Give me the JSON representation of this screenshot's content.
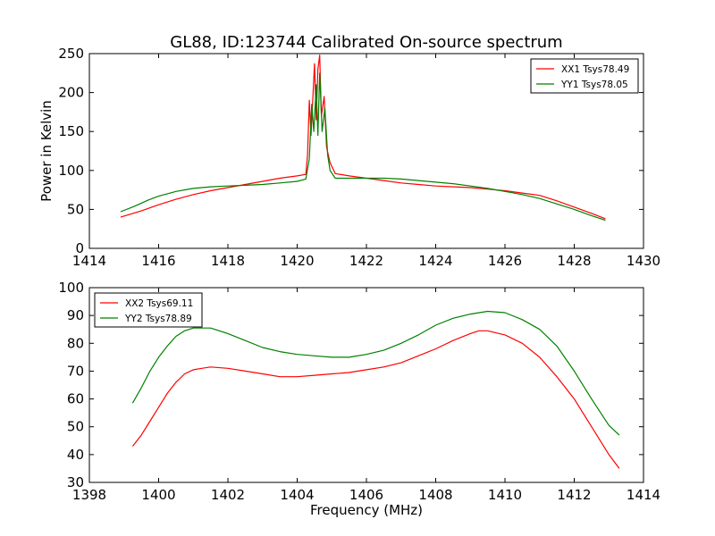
{
  "title": "GL88, ID:123744 Calibrated On-source spectrum",
  "chart_data": [
    {
      "type": "line",
      "title": "GL88, ID:123744 Calibrated On-source spectrum",
      "xlabel": "",
      "ylabel": "Power in Kelvin",
      "xlim": [
        1414,
        1430
      ],
      "ylim": [
        0,
        250
      ],
      "xticks": [
        "1414",
        "1416",
        "1418",
        "1420",
        "1422",
        "1424",
        "1426",
        "1428",
        "1430"
      ],
      "yticks": [
        "0",
        "50",
        "100",
        "150",
        "200",
        "250"
      ],
      "legend_position": "top-right",
      "grid": false,
      "series": [
        {
          "name": "XX1 Tsys78.49",
          "color": "#ff0000",
          "points": [
            [
              1414.9,
              40
            ],
            [
              1415.5,
              48
            ],
            [
              1416.0,
              56
            ],
            [
              1416.5,
              63
            ],
            [
              1417.0,
              69
            ],
            [
              1417.5,
              74
            ],
            [
              1418.0,
              78
            ],
            [
              1418.5,
              82
            ],
            [
              1419.0,
              86
            ],
            [
              1419.5,
              90
            ],
            [
              1420.0,
              93
            ],
            [
              1420.25,
              95
            ],
            [
              1420.3,
              120
            ],
            [
              1420.35,
              190
            ],
            [
              1420.4,
              145
            ],
            [
              1420.5,
              237
            ],
            [
              1420.55,
              165
            ],
            [
              1420.6,
              230
            ],
            [
              1420.65,
              248
            ],
            [
              1420.7,
              170
            ],
            [
              1420.78,
              195
            ],
            [
              1420.85,
              130
            ],
            [
              1420.95,
              110
            ],
            [
              1421.1,
              96
            ],
            [
              1421.5,
              93
            ],
            [
              1422.0,
              90
            ],
            [
              1422.5,
              87
            ],
            [
              1423.0,
              84
            ],
            [
              1423.5,
              82
            ],
            [
              1424.0,
              80
            ],
            [
              1424.5,
              79
            ],
            [
              1425.0,
              78
            ],
            [
              1425.5,
              76
            ],
            [
              1426.0,
              74
            ],
            [
              1426.5,
              71
            ],
            [
              1427.0,
              68
            ],
            [
              1427.5,
              61
            ],
            [
              1428.0,
              53
            ],
            [
              1428.5,
              45
            ],
            [
              1428.9,
              38
            ]
          ]
        },
        {
          "name": "YY1 Tsys78.05",
          "color": "#008000",
          "points": [
            [
              1414.9,
              47
            ],
            [
              1415.3,
              54
            ],
            [
              1415.7,
              62
            ],
            [
              1416.0,
              67
            ],
            [
              1416.5,
              73
            ],
            [
              1417.0,
              77
            ],
            [
              1417.5,
              79
            ],
            [
              1418.0,
              80
            ],
            [
              1418.5,
              81
            ],
            [
              1419.0,
              82
            ],
            [
              1419.5,
              84
            ],
            [
              1420.0,
              86
            ],
            [
              1420.25,
              89
            ],
            [
              1420.35,
              115
            ],
            [
              1420.42,
              185
            ],
            [
              1420.48,
              150
            ],
            [
              1420.55,
              210
            ],
            [
              1420.6,
              145
            ],
            [
              1420.65,
              225
            ],
            [
              1420.72,
              150
            ],
            [
              1420.8,
              180
            ],
            [
              1420.88,
              120
            ],
            [
              1420.95,
              100
            ],
            [
              1421.1,
              90
            ],
            [
              1421.5,
              90
            ],
            [
              1422.0,
              90
            ],
            [
              1422.5,
              90
            ],
            [
              1423.0,
              89
            ],
            [
              1423.5,
              87
            ],
            [
              1424.0,
              85
            ],
            [
              1424.5,
              83
            ],
            [
              1425.0,
              80
            ],
            [
              1425.5,
              77
            ],
            [
              1426.0,
              73
            ],
            [
              1426.5,
              69
            ],
            [
              1427.0,
              64
            ],
            [
              1427.5,
              57
            ],
            [
              1428.0,
              50
            ],
            [
              1428.5,
              42
            ],
            [
              1428.9,
              36
            ]
          ]
        }
      ]
    },
    {
      "type": "line",
      "title": "",
      "xlabel": "Frequency (MHz)",
      "ylabel": "",
      "xlim": [
        1398,
        1414
      ],
      "ylim": [
        30,
        100
      ],
      "xticks": [
        "1398",
        "1400",
        "1402",
        "1404",
        "1406",
        "1408",
        "1410",
        "1412",
        "1414"
      ],
      "yticks": [
        "30",
        "40",
        "50",
        "60",
        "70",
        "80",
        "90",
        "100"
      ],
      "legend_position": "top-left",
      "grid": false,
      "series": [
        {
          "name": "XX2 Tsys69.11",
          "color": "#ff0000",
          "points": [
            [
              1399.25,
              43
            ],
            [
              1399.5,
              47
            ],
            [
              1399.75,
              52
            ],
            [
              1400.0,
              57
            ],
            [
              1400.25,
              62
            ],
            [
              1400.5,
              66
            ],
            [
              1400.75,
              69
            ],
            [
              1401.0,
              70.5
            ],
            [
              1401.25,
              71
            ],
            [
              1401.5,
              71.5
            ],
            [
              1402.0,
              71
            ],
            [
              1402.5,
              70
            ],
            [
              1403.0,
              69
            ],
            [
              1403.5,
              68
            ],
            [
              1404.0,
              68
            ],
            [
              1404.5,
              68.5
            ],
            [
              1405.0,
              69
            ],
            [
              1405.5,
              69.5
            ],
            [
              1406.0,
              70.5
            ],
            [
              1406.5,
              71.5
            ],
            [
              1407.0,
              73
            ],
            [
              1407.5,
              75.5
            ],
            [
              1408.0,
              78
            ],
            [
              1408.5,
              81
            ],
            [
              1409.0,
              83.5
            ],
            [
              1409.25,
              84.5
            ],
            [
              1409.5,
              84.5
            ],
            [
              1410.0,
              83
            ],
            [
              1410.5,
              80
            ],
            [
              1411.0,
              75
            ],
            [
              1411.5,
              68
            ],
            [
              1412.0,
              60
            ],
            [
              1412.5,
              50
            ],
            [
              1413.0,
              40
            ],
            [
              1413.3,
              35
            ]
          ]
        },
        {
          "name": "YY2 Tsys78.89",
          "color": "#008000",
          "points": [
            [
              1399.25,
              58.5
            ],
            [
              1399.5,
              64
            ],
            [
              1399.75,
              70
            ],
            [
              1400.0,
              75
            ],
            [
              1400.25,
              79
            ],
            [
              1400.5,
              82.5
            ],
            [
              1400.75,
              84.5
            ],
            [
              1401.0,
              85.5
            ],
            [
              1401.5,
              85.5
            ],
            [
              1402.0,
              83.5
            ],
            [
              1402.5,
              81
            ],
            [
              1403.0,
              78.5
            ],
            [
              1403.5,
              77
            ],
            [
              1404.0,
              76
            ],
            [
              1404.5,
              75.5
            ],
            [
              1405.0,
              75
            ],
            [
              1405.5,
              75
            ],
            [
              1406.0,
              76
            ],
            [
              1406.5,
              77.5
            ],
            [
              1407.0,
              80
            ],
            [
              1407.5,
              83
            ],
            [
              1408.0,
              86.5
            ],
            [
              1408.5,
              89
            ],
            [
              1409.0,
              90.5
            ],
            [
              1409.5,
              91.5
            ],
            [
              1410.0,
              91
            ],
            [
              1410.5,
              88.5
            ],
            [
              1411.0,
              85
            ],
            [
              1411.5,
              79
            ],
            [
              1412.0,
              70
            ],
            [
              1412.5,
              60
            ],
            [
              1413.0,
              50.5
            ],
            [
              1413.3,
              47
            ]
          ]
        }
      ]
    }
  ]
}
